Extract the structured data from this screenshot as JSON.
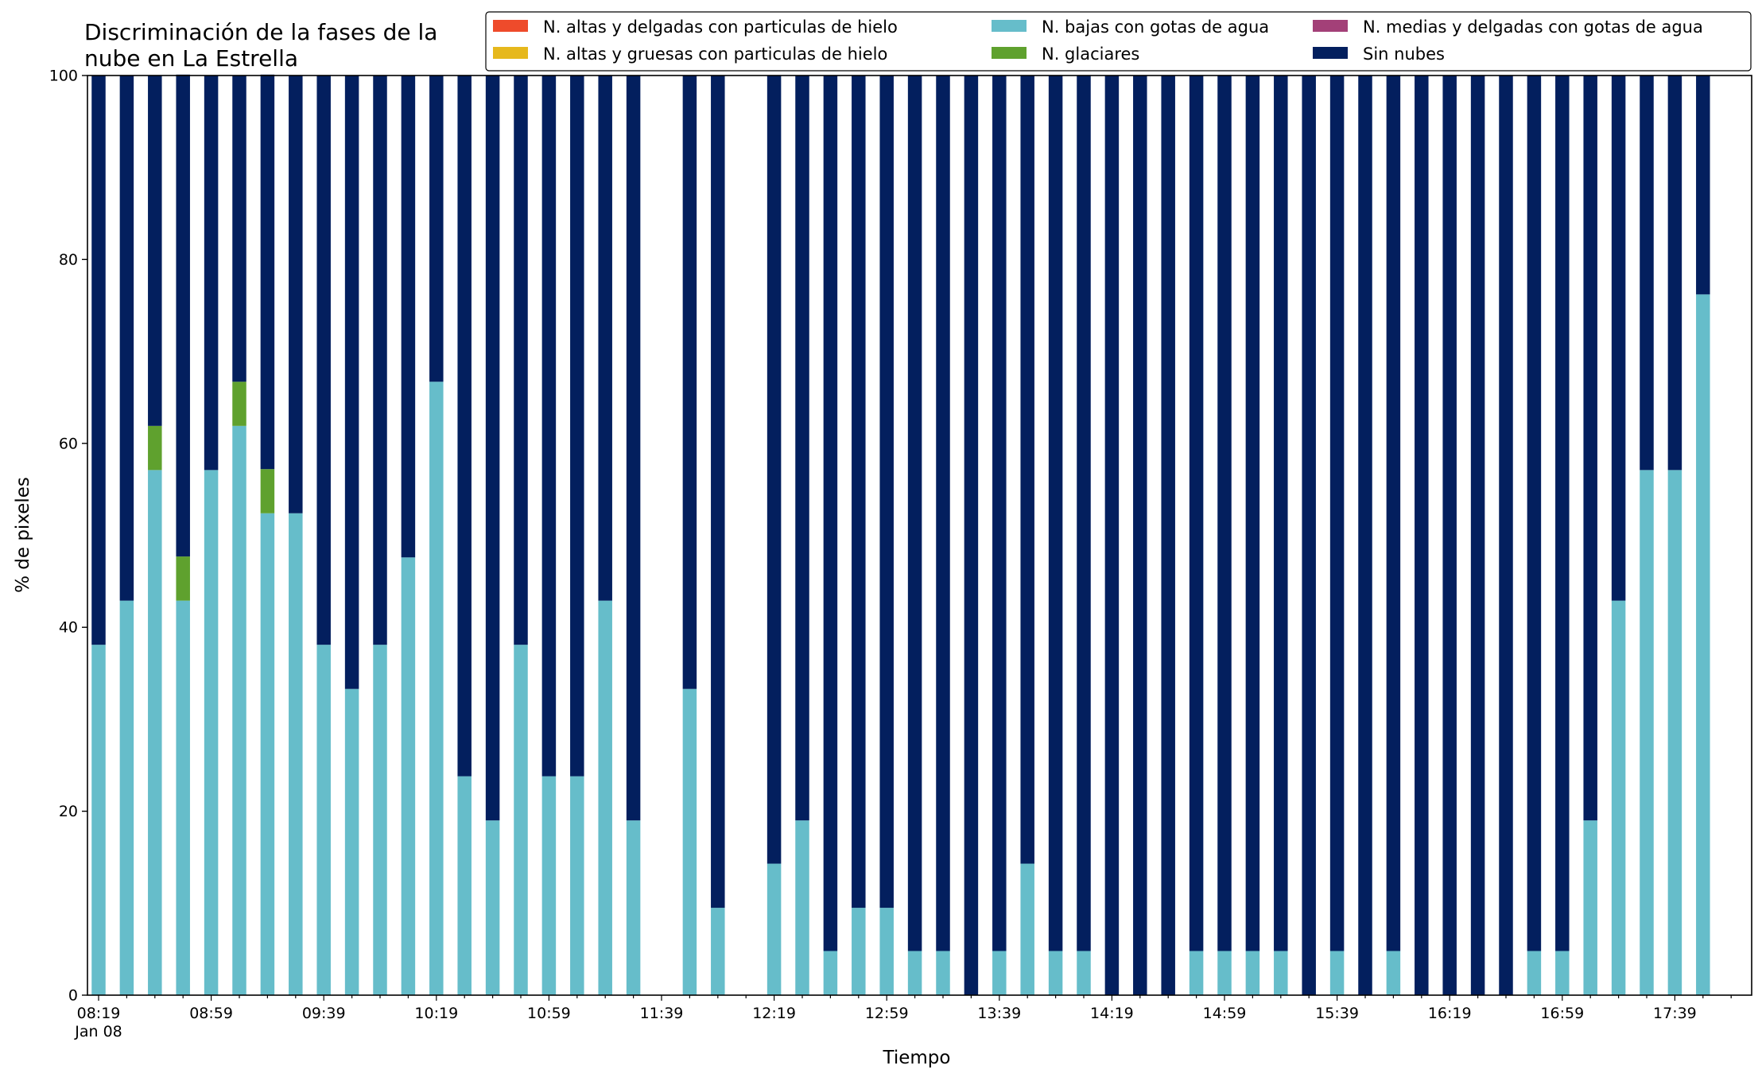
{
  "chart_data": {
    "type": "bar",
    "stacked": true,
    "title_lines": [
      "Discriminación de la fases de la",
      "nube en La Estrella"
    ],
    "xlabel": "Tiempo",
    "ylabel": "% de pixeles",
    "ylim": [
      0,
      100
    ],
    "yticks": [
      0,
      20,
      40,
      60,
      80,
      100
    ],
    "grid": false,
    "legend_position": "top-right",
    "x_tick_labels": [
      "08:19",
      "08:59",
      "09:39",
      "10:19",
      "10:59",
      "11:39",
      "12:19",
      "12:59",
      "13:39",
      "14:19",
      "14:59",
      "15:39",
      "16:19",
      "16:59",
      "17:39"
    ],
    "x_tick_sublabel": "Jan 08",
    "categories": [
      "08:19",
      "08:29",
      "08:39",
      "08:49",
      "08:59",
      "09:09",
      "09:19",
      "09:29",
      "09:39",
      "09:49",
      "09:59",
      "10:09",
      "10:19",
      "10:29",
      "10:39",
      "10:49",
      "10:59",
      "11:09",
      "11:19",
      "11:29",
      "11:39",
      "11:49",
      "11:59",
      "12:09",
      "12:19",
      "12:29",
      "12:39",
      "12:49",
      "12:59",
      "13:09",
      "13:19",
      "13:29",
      "13:39",
      "13:49",
      "13:59",
      "14:09",
      "14:19",
      "14:29",
      "14:39",
      "14:49",
      "14:59",
      "15:09",
      "15:19",
      "15:29",
      "15:39",
      "15:49",
      "15:59",
      "16:09",
      "16:19",
      "16:29",
      "16:39",
      "16:49",
      "16:59",
      "17:09",
      "17:19",
      "17:29",
      "17:39",
      "17:49"
    ],
    "series": [
      {
        "name": "N. altas y delgadas con particulas de hielo",
        "color": "#ee4b2b",
        "values": [
          0,
          0,
          0,
          0,
          0,
          0,
          0,
          0,
          0,
          0,
          0,
          0,
          0,
          0,
          0,
          0,
          0,
          0,
          0,
          0,
          0,
          0,
          0,
          0,
          0,
          0,
          0,
          0,
          0,
          0,
          0,
          0,
          0,
          0,
          0,
          0,
          0,
          0,
          0,
          0,
          0,
          0,
          0,
          0,
          0,
          0,
          0,
          0,
          0,
          0,
          0,
          0,
          0,
          0,
          0,
          0,
          0,
          0
        ]
      },
      {
        "name": "N. altas y gruesas con particulas de hielo",
        "color": "#e6b81c",
        "values": [
          0,
          0,
          0,
          0,
          0,
          0,
          0,
          0,
          0,
          0,
          0,
          0,
          0,
          0,
          0,
          0,
          0,
          0,
          0,
          0,
          0,
          0,
          0,
          0,
          0,
          0,
          0,
          0,
          0,
          0,
          0,
          0,
          0,
          0,
          0,
          0,
          0,
          0,
          0,
          0,
          0,
          0,
          0,
          0,
          0,
          0,
          0,
          0,
          0,
          0,
          0,
          0,
          0,
          0,
          0,
          0,
          0,
          0
        ]
      },
      {
        "name": "N. bajas con gotas de agua",
        "color": "#66bdca",
        "values": [
          38.1,
          42.9,
          57.1,
          42.9,
          57.1,
          61.9,
          52.4,
          52.4,
          38.1,
          33.3,
          38.1,
          47.6,
          66.7,
          23.8,
          19.0,
          38.1,
          23.8,
          23.8,
          42.9,
          19.0,
          0,
          33.3,
          9.5,
          0,
          14.3,
          19.0,
          4.8,
          9.5,
          9.5,
          4.8,
          4.8,
          0,
          4.8,
          14.3,
          4.8,
          4.8,
          0,
          0,
          0,
          4.8,
          4.8,
          4.8,
          4.8,
          0,
          4.8,
          0,
          4.8,
          0,
          0,
          0,
          0,
          4.8,
          4.8,
          19.0,
          42.9,
          57.1,
          57.1,
          76.2
        ]
      },
      {
        "name": "N. glaciares",
        "color": "#5fa12e",
        "values": [
          0,
          0,
          4.8,
          4.8,
          0,
          4.8,
          4.8,
          0,
          0,
          0,
          0,
          0,
          0,
          0,
          0,
          0,
          0,
          0,
          0,
          0,
          0,
          0,
          0,
          0,
          0,
          0,
          0,
          0,
          0,
          0,
          0,
          0,
          0,
          0,
          0,
          0,
          0,
          0,
          0,
          0,
          0,
          0,
          0,
          0,
          0,
          0,
          0,
          0,
          0,
          0,
          0,
          0,
          0,
          0,
          0,
          0,
          0,
          0
        ]
      },
      {
        "name": "N. medias y delgadas con gotas de agua",
        "color": "#a34078",
        "values": [
          0,
          0,
          0,
          0,
          0,
          0,
          0,
          0,
          0,
          0,
          0,
          0,
          0,
          0,
          0,
          0,
          0,
          0,
          0,
          0,
          0,
          0,
          0,
          0,
          0,
          0,
          0,
          0,
          0,
          0,
          0,
          0,
          0,
          0,
          0,
          0,
          0,
          0,
          0,
          0,
          0,
          0,
          0,
          0,
          0,
          0,
          0,
          0,
          0,
          0,
          0,
          0,
          0,
          0,
          0,
          0,
          0,
          0
        ]
      },
      {
        "name": "Sin nubes",
        "color": "#031f5e",
        "values": [
          61.9,
          57.1,
          38.1,
          52.4,
          42.9,
          33.3,
          42.9,
          47.6,
          61.9,
          66.7,
          61.9,
          52.4,
          33.3,
          76.2,
          81.0,
          61.9,
          76.2,
          76.2,
          57.1,
          81.0,
          0,
          66.7,
          90.5,
          0,
          85.7,
          81.0,
          95.2,
          90.5,
          90.5,
          95.2,
          95.2,
          100,
          95.2,
          85.7,
          95.2,
          95.2,
          100,
          100,
          100,
          95.2,
          95.2,
          95.2,
          95.2,
          100,
          95.2,
          100,
          95.2,
          100,
          100,
          100,
          100,
          95.2,
          95.2,
          81.0,
          57.1,
          42.9,
          42.9,
          23.8
        ]
      }
    ],
    "legend_order": [
      0,
      1,
      2,
      3,
      4,
      5
    ]
  }
}
